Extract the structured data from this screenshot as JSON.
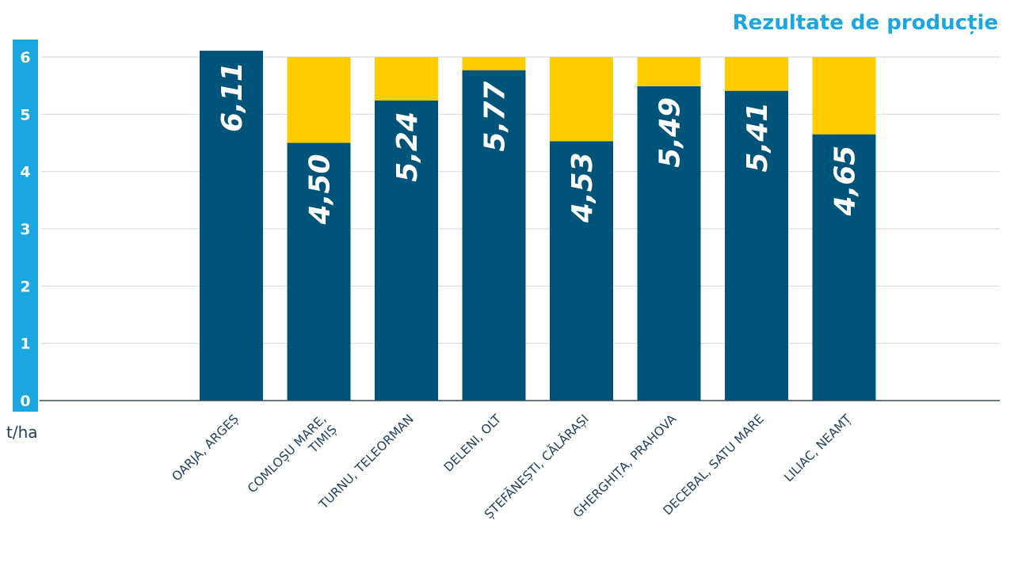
{
  "chart_data": {
    "type": "bar",
    "title": "Rezultate de producție",
    "ylabel": "t/ha",
    "ylim": [
      0,
      6
    ],
    "yticks": [
      0,
      1,
      2,
      3,
      4,
      5,
      6
    ],
    "grid": true,
    "categories": [
      "OARJA, ARGEȘ",
      "COMLOȘU MARE, TIMIȘ",
      "TURNU, TELEORMAN",
      "DELENI, OLT",
      "ȘTEFĂNEȘTI, CĂLĂRAȘI",
      "GHERGHIȚA, PRAHOVA",
      "DECEBAL, SATU MARE",
      "LILIAC, NEAMȚ"
    ],
    "category_lines": [
      [
        "OARJA, ARGEȘ"
      ],
      [
        "COMLOȘU MARE,",
        "TIMIȘ"
      ],
      [
        "TURNU, TELEORMAN"
      ],
      [
        "DELENI, OLT"
      ],
      [
        "ȘTEFĂNEȘTI, CĂLĂRAȘI"
      ],
      [
        "GHERGHIȚA, PRAHOVA"
      ],
      [
        "DECEBAL, SATU MARE"
      ],
      [
        "LILIAC, NEAMȚ"
      ]
    ],
    "series": [
      {
        "values": [
          6.11,
          4.5,
          5.24,
          5.77,
          4.53,
          5.49,
          5.41,
          4.65
        ],
        "color": "#00547a"
      },
      {
        "values": [
          0,
          1.5,
          0.76,
          0.23,
          1.47,
          0.51,
          0.59,
          1.35
        ],
        "color": "#ffcc00"
      }
    ],
    "data_labels": [
      "6,11",
      "4,50",
      "5,24",
      "5,77",
      "4,53",
      "5,49",
      "5,41",
      "4,65"
    ],
    "axis_color": "#1aa6e0"
  }
}
